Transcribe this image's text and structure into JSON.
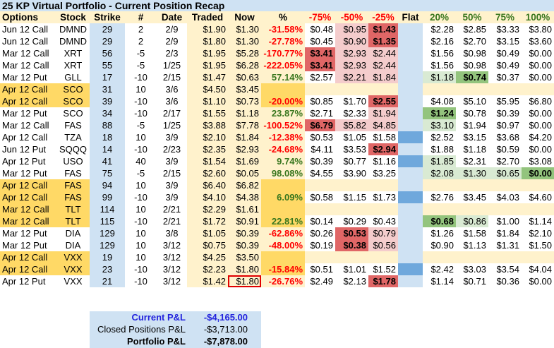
{
  "title": "25 KP Virtual Portfolio - Current Position Recap",
  "headers": [
    "Options",
    "Stock",
    "Strike",
    "#",
    "Date",
    "Traded",
    "Now",
    "%",
    "-75%",
    "-50%",
    "-25%",
    "Flat",
    "20%",
    "50%",
    "75%",
    "100%"
  ],
  "colors": {
    "negative": "#ff0000",
    "positive": "#38761d",
    "highlight_row": "#ffd966",
    "dark_red": "#e06666",
    "light_red": "#f4cccc",
    "dark_green": "#93c47d",
    "light_green": "#d9ead3",
    "flat_marker": "#6fa8dc"
  },
  "rows": [
    {
      "options": "Jun 12 Call",
      "stock": "DMND",
      "strike": "29",
      "qty": "2",
      "date": "2/9",
      "traded": "$1.90",
      "now": "$1.30",
      "pct": "-31.58%",
      "scen": [
        "$0.48",
        "$0.95",
        "$1.43",
        "",
        "$2.28",
        "$2.85",
        "$3.33",
        "$3.80"
      ],
      "hl": [
        "",
        "r",
        "R",
        "",
        "",
        "",
        "",
        ""
      ]
    },
    {
      "options": "Jun 12 Call",
      "stock": "DMND",
      "strike": "29",
      "qty": "2",
      "date": "2/9",
      "traded": "$1.80",
      "now": "$1.30",
      "pct": "-27.78%",
      "scen": [
        "$0.45",
        "$0.90",
        "$1.35",
        "",
        "$2.16",
        "$2.70",
        "$3.15",
        "$3.60"
      ],
      "hl": [
        "",
        "r",
        "R",
        "",
        "",
        "",
        "",
        ""
      ]
    },
    {
      "options": "Mar 12 Call",
      "stock": "XRT",
      "strike": "56",
      "qty": "-5",
      "date": "2/3",
      "traded": "$1.95",
      "now": "$5.28",
      "pct": "-170.77%",
      "scen": [
        "$3.41",
        "$2.93",
        "$2.44",
        "",
        "$1.56",
        "$0.98",
        "$0.49",
        "$0.00"
      ],
      "hl": [
        "R",
        "r",
        "r",
        "",
        "",
        "",
        "",
        ""
      ]
    },
    {
      "options": "Mar 12 Call",
      "stock": "XRT",
      "strike": "55",
      "qty": "-5",
      "date": "1/25",
      "traded": "$1.95",
      "now": "$6.28",
      "pct": "-222.05%",
      "scen": [
        "$3.41",
        "$2.93",
        "$2.44",
        "",
        "$1.56",
        "$0.98",
        "$0.49",
        "$0.00"
      ],
      "hl": [
        "R",
        "r",
        "r",
        "",
        "",
        "",
        "",
        ""
      ]
    },
    {
      "options": "Mar 12 Put",
      "stock": "GLL",
      "strike": "17",
      "qty": "-10",
      "date": "2/15",
      "traded": "$1.47",
      "now": "$0.63",
      "pct": "57.14%",
      "scen": [
        "$2.57",
        "$2.21",
        "$1.84",
        "",
        "$1.18",
        "$0.74",
        "$0.37",
        "$0.00"
      ],
      "hl": [
        "",
        "r",
        "r",
        "",
        "g",
        "G",
        "",
        ""
      ]
    },
    {
      "options": "Apr 12 Call",
      "stock": "SCO",
      "strike": "31",
      "qty": "10",
      "date": "3/6",
      "traded": "$4.50",
      "now": "$3.45",
      "pct": "",
      "highlight": true,
      "closed": true
    },
    {
      "options": "Apr 12 Call",
      "stock": "SCO",
      "strike": "39",
      "qty": "-10",
      "date": "3/6",
      "traded": "$1.10",
      "now": "$0.73",
      "pct": "-20.00%",
      "highlight": true,
      "scen": [
        "$0.85",
        "$1.70",
        "$2.55",
        "",
        "$4.08",
        "$5.10",
        "$5.95",
        "$6.80"
      ],
      "hl": [
        "",
        "",
        "R",
        "",
        "",
        "",
        "",
        ""
      ]
    },
    {
      "options": "Mar 12 Put",
      "stock": "SCO",
      "strike": "34",
      "qty": "-10",
      "date": "2/17",
      "traded": "$1.55",
      "now": "$1.18",
      "pct": "23.87%",
      "scen": [
        "$2.71",
        "$2.33",
        "$1.94",
        "",
        "$1.24",
        "$0.78",
        "$0.39",
        "$0.00"
      ],
      "hl": [
        "",
        "",
        "r",
        "",
        "G",
        "",
        "",
        ""
      ]
    },
    {
      "options": "Mar 12 Call",
      "stock": "FAS",
      "strike": "88",
      "qty": "-5",
      "date": "1/25",
      "traded": "$3.88",
      "now": "$7.78",
      "pct": "-100.52%",
      "scen": [
        "$6.79",
        "$5.82",
        "$4.85",
        "",
        "$3.10",
        "$1.94",
        "$0.97",
        "$0.00"
      ],
      "hl": [
        "R",
        "r",
        "r",
        "",
        "g",
        "",
        "",
        ""
      ]
    },
    {
      "options": "Apr 12 Call",
      "stock": "TZA",
      "strike": "18",
      "qty": "10",
      "date": "3/9",
      "traded": "$2.10",
      "now": "$1.84",
      "pct": "-12.38%",
      "flat_marker": true,
      "scen": [
        "$0.53",
        "$1.05",
        "$1.58",
        "",
        "$2.52",
        "$3.15",
        "$3.68",
        "$4.20"
      ],
      "hl": [
        "",
        "",
        "",
        "",
        "",
        "",
        "",
        ""
      ]
    },
    {
      "options": "Jun 12 Put",
      "stock": "SQQQ",
      "strike": "14",
      "qty": "-10",
      "date": "2/23",
      "traded": "$2.35",
      "now": "$2.93",
      "pct": "-24.68%",
      "scen": [
        "$4.11",
        "$3.53",
        "$2.94",
        "",
        "$1.88",
        "$1.18",
        "$0.59",
        "$0.00"
      ],
      "hl": [
        "",
        "",
        "R",
        "",
        "",
        "",
        "",
        ""
      ]
    },
    {
      "options": "Apr 12 Put",
      "stock": "USO",
      "strike": "41",
      "qty": "40",
      "date": "3/9",
      "traded": "$1.54",
      "now": "$1.69",
      "pct": "9.74%",
      "flat_marker": true,
      "scen": [
        "$0.39",
        "$0.77",
        "$1.16",
        "",
        "$1.85",
        "$2.31",
        "$2.70",
        "$3.08"
      ],
      "hl": [
        "",
        "",
        "",
        "",
        "g",
        "",
        "",
        ""
      ]
    },
    {
      "options": "Mar 12 Put",
      "stock": "FAS",
      "strike": "75",
      "qty": "-5",
      "date": "2/15",
      "traded": "$2.60",
      "now": "$0.05",
      "pct": "98.08%",
      "scen": [
        "$4.55",
        "$3.90",
        "$3.25",
        "",
        "$2.08",
        "$1.30",
        "$0.65",
        "$0.00"
      ],
      "hl": [
        "",
        "",
        "",
        "",
        "g",
        "g",
        "g",
        "G"
      ]
    },
    {
      "options": "Apr 12 Call",
      "stock": "FAS",
      "strike": "94",
      "qty": "10",
      "date": "3/9",
      "traded": "$6.40",
      "now": "$6.82",
      "pct": "",
      "highlight": true,
      "closed": true
    },
    {
      "options": "Apr 12 Call",
      "stock": "FAS",
      "strike": "99",
      "qty": "-10",
      "date": "3/9",
      "traded": "$4.10",
      "now": "$4.38",
      "pct": "6.09%",
      "highlight": true,
      "flat_marker": true,
      "scen": [
        "$0.58",
        "$1.15",
        "$1.73",
        "",
        "$2.76",
        "$3.45",
        "$4.03",
        "$4.60"
      ],
      "hl": [
        "",
        "",
        "",
        "",
        "",
        "",
        "",
        ""
      ]
    },
    {
      "options": "Mar 12 Call",
      "stock": "TLT",
      "strike": "114",
      "qty": "10",
      "date": "2/21",
      "traded": "$2.29",
      "now": "$1.61",
      "pct": "",
      "highlight": true,
      "closed": true
    },
    {
      "options": "Mar 12 Call",
      "stock": "TLT",
      "strike": "115",
      "qty": "-10",
      "date": "2/21",
      "traded": "$1.72",
      "now": "$0.91",
      "pct": "22.81%",
      "highlight": true,
      "scen": [
        "$0.14",
        "$0.29",
        "$0.43",
        "",
        "$0.68",
        "$0.86",
        "$1.00",
        "$1.14"
      ],
      "hl": [
        "",
        "",
        "",
        "",
        "G",
        "g",
        "",
        ""
      ]
    },
    {
      "options": "Mar 12 Put",
      "stock": "DIA",
      "strike": "129",
      "qty": "10",
      "date": "3/8",
      "traded": "$1.05",
      "now": "$0.39",
      "pct": "-62.86%",
      "scen": [
        "$0.26",
        "$0.53",
        "$0.79",
        "",
        "$1.26",
        "$1.58",
        "$1.84",
        "$2.10"
      ],
      "hl": [
        "",
        "R",
        "r",
        "",
        "",
        "",
        "",
        ""
      ]
    },
    {
      "options": "Mar 12 Put",
      "stock": "DIA",
      "strike": "129",
      "qty": "10",
      "date": "3/12",
      "traded": "$0.75",
      "now": "$0.39",
      "pct": "-48.00%",
      "scen": [
        "$0.19",
        "$0.38",
        "$0.56",
        "",
        "$0.90",
        "$1.13",
        "$1.31",
        "$1.50"
      ],
      "hl": [
        "",
        "R",
        "r",
        "",
        "",
        "",
        "",
        ""
      ]
    },
    {
      "options": "Apr 12 Call",
      "stock": "VXX",
      "strike": "19",
      "qty": "10",
      "date": "3/12",
      "traded": "$4.25",
      "now": "$3.50",
      "pct": "",
      "highlight": true,
      "closed": true
    },
    {
      "options": "Apr 12 Call",
      "stock": "VXX",
      "strike": "23",
      "qty": "-10",
      "date": "3/12",
      "traded": "$2.23",
      "now": "$1.80",
      "pct": "-15.84%",
      "highlight": true,
      "flat_marker": true,
      "scen": [
        "$0.51",
        "$1.01",
        "$1.52",
        "",
        "$2.42",
        "$3.03",
        "$3.54",
        "$4.04"
      ],
      "hl": [
        "",
        "",
        "",
        "",
        "",
        "",
        "",
        ""
      ]
    },
    {
      "options": "Apr 12 Put",
      "stock": "VXX",
      "strike": "21",
      "qty": "-10",
      "date": "3/12",
      "traded": "$1.42",
      "now": "$1.80",
      "pct": "-26.76%",
      "now_selected": true,
      "scen": [
        "$2.49",
        "$2.13",
        "$1.78",
        "",
        "$1.14",
        "$0.71",
        "$0.36",
        "$0.00"
      ],
      "hl": [
        "",
        "",
        "R",
        "",
        "",
        "",
        "",
        ""
      ]
    }
  ],
  "summary": [
    {
      "label": "Current P&L",
      "value": "-$4,165.00"
    },
    {
      "label": "Closed Positions P&L",
      "value": "-$3,713.00"
    },
    {
      "label": "Portfolio P&L",
      "value": "-$7,878.00"
    }
  ]
}
